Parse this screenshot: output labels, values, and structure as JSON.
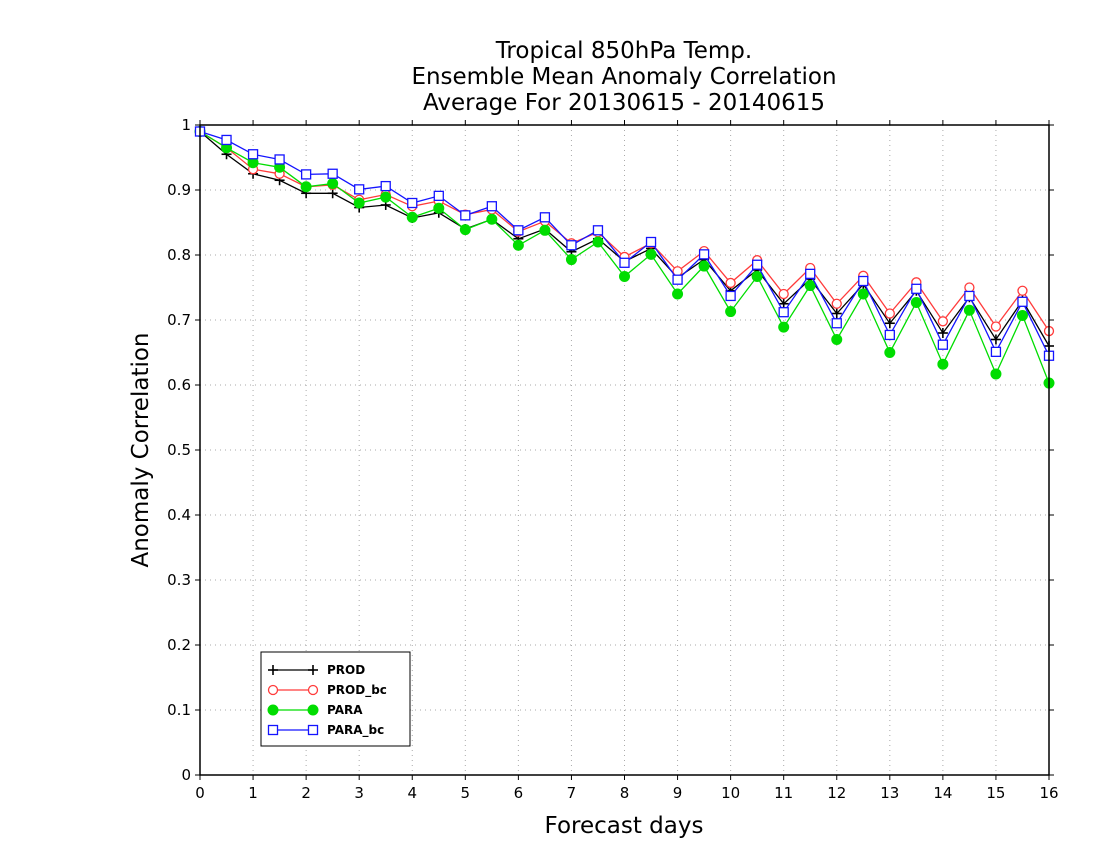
{
  "chart_data": {
    "type": "line",
    "title_lines": [
      "Tropical 850hPa Temp.",
      "Ensemble Mean Anomaly Correlation",
      "Average For 20130615 - 20140615"
    ],
    "xlabel": "Forecast days",
    "ylabel": "Anomaly Correlation",
    "xlim": [
      0,
      16
    ],
    "ylim": [
      0,
      1
    ],
    "xticks": [
      "0",
      "1",
      "2",
      "3",
      "4",
      "5",
      "6",
      "7",
      "8",
      "9",
      "10",
      "11",
      "12",
      "13",
      "14",
      "15",
      "16"
    ],
    "yticks": [
      "0",
      "0.1",
      "0.2",
      "0.3",
      "0.4",
      "0.5",
      "0.6",
      "0.7",
      "0.8",
      "0.9",
      "1"
    ],
    "grid": true,
    "legend_position": "bottom-left",
    "x": [
      0,
      0.5,
      1,
      1.5,
      2,
      2.5,
      3,
      3.5,
      4,
      4.5,
      5,
      5.5,
      6,
      6.5,
      7,
      7.5,
      8,
      8.5,
      9,
      9.5,
      10,
      10.5,
      11,
      11.5,
      12,
      12.5,
      13,
      13.5,
      14,
      14.5,
      15,
      15.5,
      16
    ],
    "series": [
      {
        "name": "PROD",
        "color": "#000000",
        "marker": "plus",
        "values": [
          0.99,
          0.955,
          0.925,
          0.915,
          0.895,
          0.895,
          0.873,
          0.877,
          0.857,
          0.865,
          0.84,
          0.855,
          0.825,
          0.84,
          0.805,
          0.825,
          0.79,
          0.81,
          0.765,
          0.793,
          0.745,
          0.777,
          0.725,
          0.763,
          0.71,
          0.755,
          0.695,
          0.745,
          0.68,
          0.735,
          0.67,
          0.73,
          0.66
        ]
      },
      {
        "name": "PROD_bc",
        "color": "#ff3b3b",
        "marker": "open-circle",
        "values": [
          0.99,
          0.965,
          0.932,
          0.925,
          0.905,
          0.908,
          0.885,
          0.893,
          0.875,
          0.883,
          0.862,
          0.87,
          0.836,
          0.852,
          0.818,
          0.835,
          0.797,
          0.818,
          0.775,
          0.806,
          0.757,
          0.792,
          0.74,
          0.78,
          0.725,
          0.768,
          0.71,
          0.758,
          0.698,
          0.75,
          0.69,
          0.745,
          0.683
        ]
      },
      {
        "name": "PARA",
        "color": "#00dd00",
        "marker": "filled-circle",
        "values": [
          0.99,
          0.965,
          0.942,
          0.935,
          0.905,
          0.91,
          0.88,
          0.889,
          0.858,
          0.872,
          0.839,
          0.855,
          0.815,
          0.838,
          0.793,
          0.82,
          0.767,
          0.801,
          0.74,
          0.783,
          0.713,
          0.767,
          0.689,
          0.753,
          0.67,
          0.74,
          0.65,
          0.727,
          0.632,
          0.715,
          0.617,
          0.707,
          0.603
        ]
      },
      {
        "name": "PARA_bc",
        "color": "#1414ff",
        "marker": "open-square",
        "values": [
          0.99,
          0.977,
          0.955,
          0.947,
          0.924,
          0.925,
          0.901,
          0.906,
          0.88,
          0.891,
          0.861,
          0.875,
          0.838,
          0.858,
          0.815,
          0.838,
          0.788,
          0.82,
          0.762,
          0.801,
          0.737,
          0.785,
          0.712,
          0.771,
          0.695,
          0.76,
          0.677,
          0.748,
          0.662,
          0.737,
          0.651,
          0.728,
          0.645
        ]
      }
    ]
  }
}
